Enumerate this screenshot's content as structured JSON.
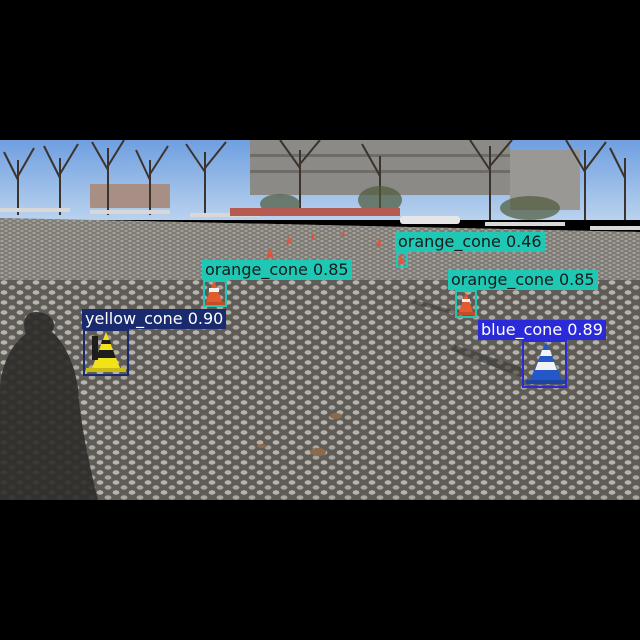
{
  "detections": [
    {
      "label": "orange_cone 0.46",
      "class": "orange",
      "color": "#1ec8b4"
    },
    {
      "label": "orange_cone 0.85",
      "class": "orange",
      "color": "#1ec8b4"
    },
    {
      "label": "orange_cone 0.85",
      "class": "orange",
      "color": "#1ec8b4"
    },
    {
      "label": "yellow_cone 0.90",
      "class": "yellow",
      "color": "#1a2a6e"
    },
    {
      "label": "blue_cone 0.89",
      "class": "blue",
      "color": "#2a2ad8"
    }
  ]
}
